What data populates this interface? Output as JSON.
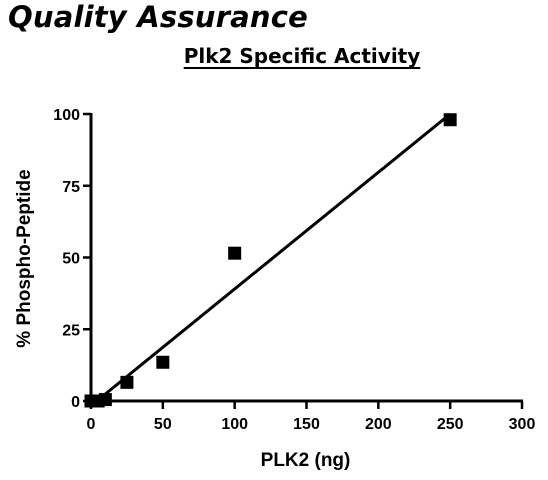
{
  "heading": "Quality Assurance",
  "chart_data": {
    "type": "scatter",
    "title": "Plk2 Specific Activity",
    "xlabel": "PLK2 (ng)",
    "ylabel": "% Phospho-Peptide",
    "xlim": [
      0,
      300
    ],
    "ylim": [
      0,
      100
    ],
    "x_ticks": [
      0,
      50,
      100,
      150,
      200,
      250,
      300
    ],
    "y_ticks": [
      0,
      25,
      50,
      75,
      100
    ],
    "points": [
      {
        "x": 0,
        "y": 0
      },
      {
        "x": 5,
        "y": 0
      },
      {
        "x": 10,
        "y": 0.5
      },
      {
        "x": 25,
        "y": 6.5
      },
      {
        "x": 50,
        "y": 13.5
      },
      {
        "x": 100,
        "y": 51.5
      },
      {
        "x": 250,
        "y": 98
      }
    ],
    "fit_line": {
      "x": [
        4,
        250
      ],
      "y": [
        0,
        100
      ]
    },
    "grid": false,
    "legend": "none",
    "marker_color": "#000000"
  }
}
